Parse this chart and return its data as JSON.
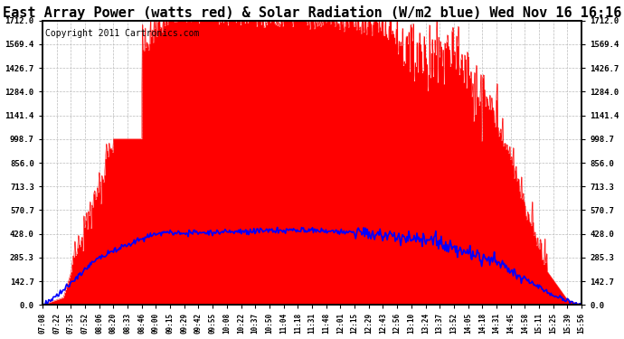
{
  "title": "East Array Power (watts red) & Solar Radiation (W/m2 blue) Wed Nov 16 16:16",
  "copyright": "Copyright 2011 Cartronics.com",
  "yticks": [
    0.0,
    142.7,
    285.3,
    428.0,
    570.7,
    713.3,
    856.0,
    998.7,
    1141.4,
    1284.0,
    1426.7,
    1569.4,
    1712.0
  ],
  "ymax": 1712.0,
  "xtick_labels": [
    "07:08",
    "07:22",
    "07:35",
    "07:52",
    "08:06",
    "08:20",
    "08:33",
    "08:46",
    "09:00",
    "09:15",
    "09:29",
    "09:42",
    "09:55",
    "10:08",
    "10:22",
    "10:37",
    "10:50",
    "11:04",
    "11:18",
    "11:31",
    "11:48",
    "12:01",
    "12:15",
    "12:29",
    "12:43",
    "12:56",
    "13:10",
    "13:24",
    "13:37",
    "13:52",
    "14:05",
    "14:18",
    "14:31",
    "14:45",
    "14:58",
    "15:11",
    "15:25",
    "15:39",
    "15:56"
  ],
  "n_xticks": 39,
  "background_color": "#ffffff",
  "plot_bg_color": "#ffffff",
  "grid_color": "#bbbbbb",
  "red_color": "#ff0000",
  "blue_color": "#0000ff",
  "title_fontsize": 11,
  "copyright_fontsize": 7,
  "n_points": 600
}
